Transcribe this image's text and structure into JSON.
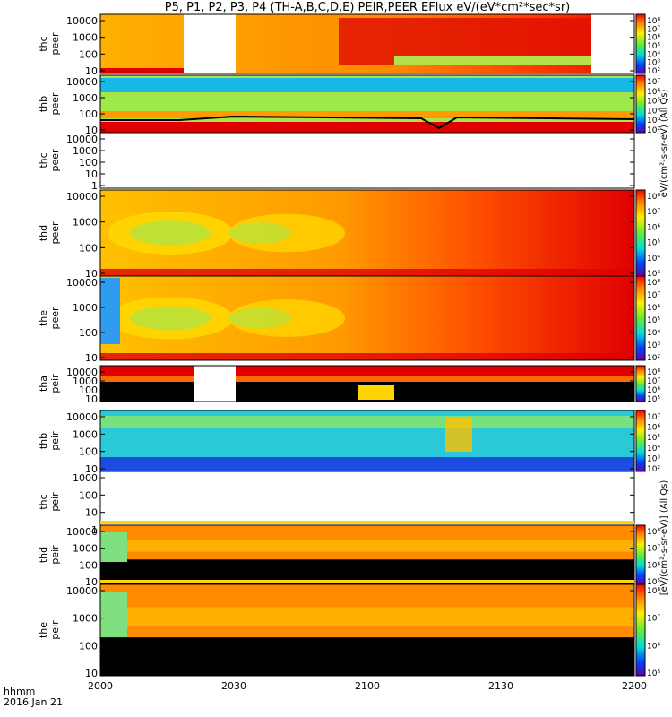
{
  "title": "P5, P1, P2, P3, P4 (TH-A,B,C,D,E) PEIR,PEER EFlux eV/(eV*cm²*sec*sr)",
  "footer": {
    "hhmm": "hhmm",
    "date": "2016 Jan 21"
  },
  "colors": {
    "red": "#e00000",
    "orange": "#ff9a00",
    "yellow": "#ffd400",
    "green": "#a6e64a",
    "cyan": "#29c9d8",
    "blue": "#1d4de0",
    "black": "#000000"
  },
  "colorbar_units": {
    "peer": "eV/(cm²-s-sr-eV) (All Qs)",
    "peir": "[eV/(cm²-s-sr-eV)] (All Qs)"
  },
  "chart_data": {
    "type": "heatmap",
    "x_ticks": [
      "2000",
      "2030",
      "2100",
      "2130",
      "2200"
    ],
    "panels": [
      {
        "label": [
          "thc",
          "peer"
        ],
        "y_ticks": [
          "10000",
          "1000",
          "100",
          "10"
        ],
        "colorbar": [
          "10⁸",
          "10⁷",
          "10⁶",
          "10⁵",
          "10⁴",
          "10³",
          "10²"
        ],
        "empty": false
      },
      {
        "label": [
          "thb",
          "peer"
        ],
        "y_ticks": [
          "10000",
          "1000",
          "100",
          "10"
        ],
        "colorbar": [
          "10⁷",
          "10⁶",
          "10⁵",
          "10⁴",
          "10³",
          "10²"
        ],
        "empty": false
      },
      {
        "label": [
          "thc",
          "peer"
        ],
        "y_ticks": [
          "10000",
          "1000",
          "100",
          "10",
          "1"
        ],
        "colorbar": [],
        "empty": true
      },
      {
        "label": [
          "thd",
          "peer"
        ],
        "y_ticks": [
          "10000",
          "1000",
          "100",
          "10"
        ],
        "colorbar": [
          "10⁸",
          "10⁷",
          "10⁶",
          "10⁵",
          "10⁴",
          "10³"
        ],
        "empty": false
      },
      {
        "label": [
          "the",
          "peer"
        ],
        "y_ticks": [
          "10000",
          "1000",
          "100",
          "10"
        ],
        "colorbar": [
          "10⁸",
          "10⁷",
          "10⁶",
          "10⁵",
          "10⁴",
          "10³",
          "10²"
        ],
        "empty": false
      },
      {
        "label": [
          "tha",
          "peir"
        ],
        "y_ticks": [
          "10000",
          "1000",
          "100",
          "10"
        ],
        "colorbar": [
          "10⁸",
          "10⁷",
          "10⁶",
          "10⁵"
        ],
        "empty": false
      },
      {
        "label": [
          "thb",
          "peir"
        ],
        "y_ticks": [
          "10000",
          "1000",
          "100",
          "10"
        ],
        "colorbar": [
          "10⁷",
          "10⁶",
          "10⁵",
          "10⁴",
          "10³",
          "10²"
        ],
        "empty": false
      },
      {
        "label": [
          "thc",
          "peir"
        ],
        "y_ticks": [
          "1000",
          "100",
          "10",
          "1"
        ],
        "colorbar": [],
        "empty": true
      },
      {
        "label": [
          "thd",
          "peir"
        ],
        "y_ticks": [
          "10000",
          "1000",
          "100",
          "10"
        ],
        "colorbar": [
          "10⁸",
          "10⁷",
          "10⁶",
          "10⁵"
        ],
        "empty": false
      },
      {
        "label": [
          "the",
          "peir"
        ],
        "y_ticks": [
          "10000",
          "1000",
          "100",
          "10"
        ],
        "colorbar": [
          "10⁸",
          "10⁷",
          "10⁶",
          "10⁵"
        ],
        "empty": false
      }
    ]
  }
}
